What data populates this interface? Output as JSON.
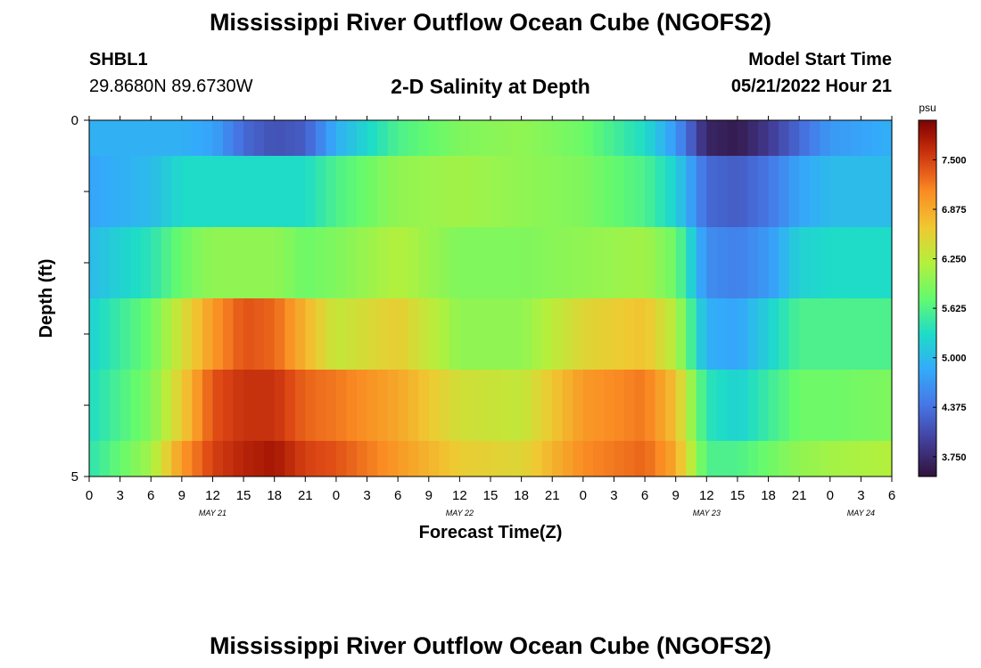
{
  "titles": {
    "main": "Mississippi River Outflow Ocean Cube (NGOFS2)",
    "subtitle": "2-D Salinity at Depth",
    "repeat_title": "Mississippi River Outflow Ocean Cube (NGOFS2)"
  },
  "station": {
    "name": "SHBL1",
    "location": "29.8680N  89.6730W"
  },
  "model_start": {
    "label": "Model Start Time",
    "value": "05/21/2022 Hour 21"
  },
  "chart_data": {
    "type": "heatmap",
    "title": "2-D Salinity at Depth",
    "xlabel": "Forecast Time(Z)",
    "ylabel": "Depth (ft)",
    "x_tick_labels": [
      "0",
      "3",
      "6",
      "9",
      "12",
      "15",
      "18",
      "21",
      "0",
      "3",
      "6",
      "9",
      "12",
      "15",
      "18",
      "21",
      "0",
      "3",
      "6",
      "9",
      "12",
      "15",
      "18",
      "21",
      "0",
      "3",
      "6"
    ],
    "x_range_hours": [
      0,
      78
    ],
    "date_labels": [
      {
        "text": "MAY 21",
        "hour": 12
      },
      {
        "text": "MAY 22",
        "hour": 36
      },
      {
        "text": "MAY 23",
        "hour": 60
      },
      {
        "text": "MAY 24",
        "hour": 75
      }
    ],
    "y_tick_labels": [
      "0",
      "5"
    ],
    "ylim": [
      0,
      5
    ],
    "colorbar": {
      "unit": "psu",
      "ticks": [
        "7.500",
        "6.875",
        "6.250",
        "5.625",
        "5.000",
        "4.375",
        "3.750"
      ],
      "range": [
        3.5,
        8.0
      ]
    },
    "profile_hours": [
      0,
      6,
      9,
      12,
      15,
      18,
      21,
      24,
      30,
      36,
      42,
      48,
      54,
      57,
      60,
      63,
      66,
      69,
      72,
      78
    ],
    "layers": [
      {
        "depth_ft": [
          0,
          0.5
        ],
        "values": [
          4.9,
          4.9,
          4.9,
          4.8,
          4.3,
          4.1,
          4.2,
          4.9,
          5.6,
          5.9,
          6.0,
          5.8,
          5.3,
          4.7,
          3.7,
          3.6,
          3.9,
          4.3,
          4.7,
          4.9
        ]
      },
      {
        "depth_ft": [
          0.5,
          1.5
        ],
        "values": [
          4.8,
          5.0,
          5.3,
          5.3,
          5.3,
          5.3,
          5.3,
          5.6,
          6.0,
          6.1,
          6.0,
          5.9,
          5.6,
          5.2,
          4.3,
          4.2,
          4.4,
          4.8,
          5.0,
          5.0
        ]
      },
      {
        "depth_ft": [
          1.5,
          2.5
        ],
        "values": [
          5.0,
          5.4,
          5.8,
          6.0,
          6.0,
          6.0,
          5.8,
          5.9,
          6.2,
          5.9,
          5.9,
          6.0,
          6.1,
          5.8,
          4.6,
          4.5,
          4.7,
          5.2,
          5.3,
          5.3
        ]
      },
      {
        "depth_ft": [
          2.5,
          3.5
        ],
        "values": [
          5.2,
          5.8,
          6.4,
          7.0,
          7.4,
          7.3,
          6.8,
          6.3,
          6.6,
          6.0,
          6.0,
          6.5,
          6.7,
          6.2,
          4.9,
          4.8,
          5.2,
          5.6,
          5.6,
          5.6
        ]
      },
      {
        "depth_ft": [
          3.5,
          4.5
        ],
        "values": [
          5.3,
          5.9,
          6.6,
          7.4,
          7.6,
          7.6,
          7.3,
          7.2,
          6.9,
          6.4,
          6.3,
          7.0,
          7.2,
          6.7,
          5.4,
          5.2,
          5.5,
          5.8,
          5.8,
          5.9
        ]
      },
      {
        "depth_ft": [
          4.5,
          5.0
        ],
        "values": [
          5.4,
          6.1,
          7.0,
          7.5,
          7.7,
          7.8,
          7.5,
          7.4,
          7.0,
          6.6,
          6.5,
          7.1,
          7.3,
          6.9,
          5.6,
          5.6,
          5.8,
          6.0,
          6.1,
          6.2
        ]
      }
    ]
  }
}
